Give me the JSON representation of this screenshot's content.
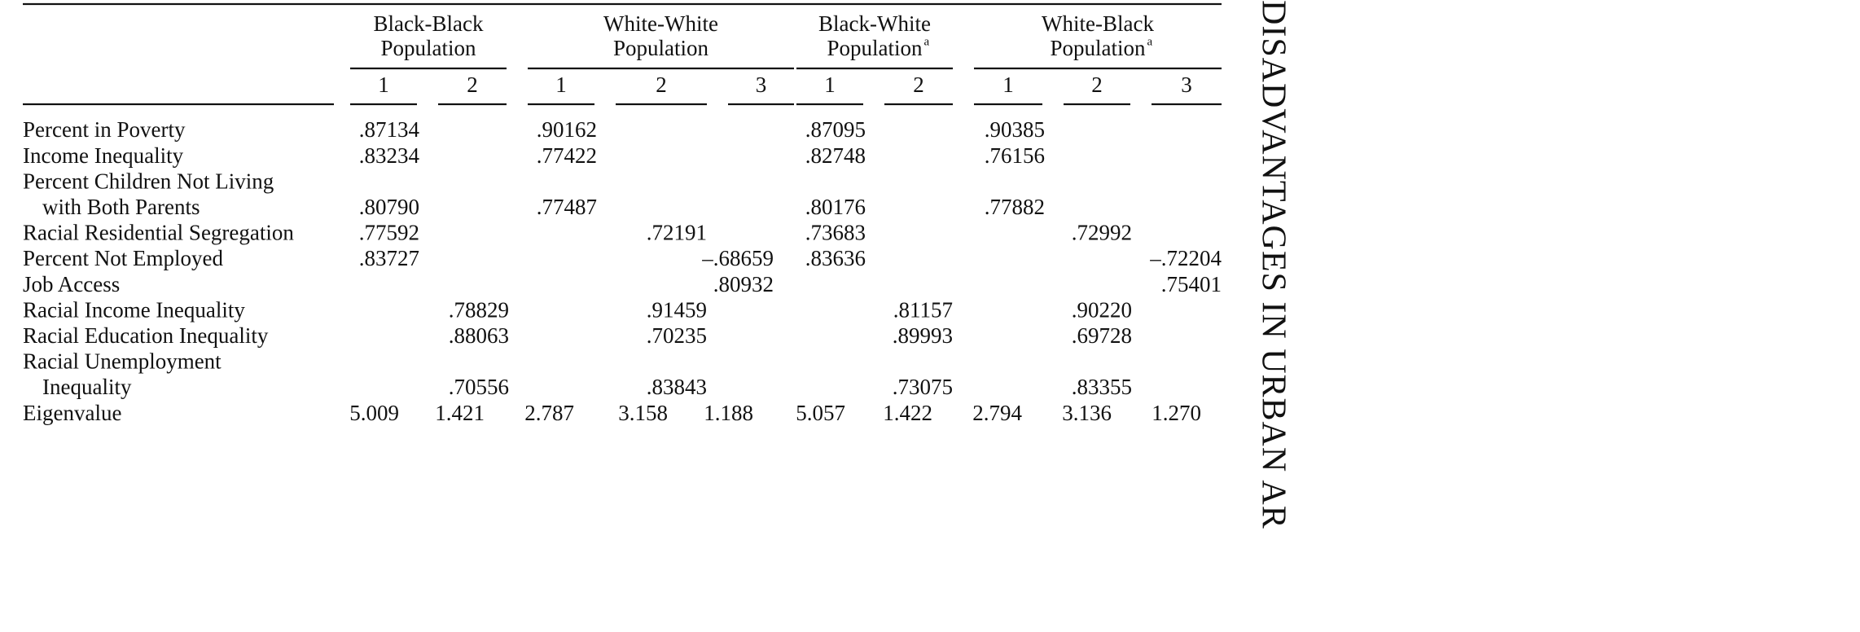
{
  "header": {
    "groups": [
      {
        "title": [
          "Black-Black",
          "Population"
        ],
        "columns": [
          "1",
          "2"
        ]
      },
      {
        "title": [
          "White-White",
          "Population"
        ],
        "columns": [
          "1",
          "2",
          "3"
        ]
      },
      {
        "title": [
          "Black-White",
          "Population"
        ],
        "note": "a",
        "columns": [
          "1",
          "2"
        ]
      },
      {
        "title": [
          "White-Black",
          "Population"
        ],
        "note": "a",
        "columns": [
          "1",
          "2",
          "3"
        ]
      }
    ]
  },
  "table": {
    "rows": [
      {
        "label": [
          "Percent in Poverty"
        ],
        "values": [
          ".87134",
          null,
          ".90162",
          null,
          null,
          ".87095",
          null,
          ".90385",
          null,
          null
        ]
      },
      {
        "label": [
          "Income Inequality"
        ],
        "values": [
          ".83234",
          null,
          ".77422",
          null,
          null,
          ".82748",
          null,
          ".76156",
          null,
          null
        ]
      },
      {
        "label": [
          "Percent Children Not Living",
          "with Both Parents"
        ],
        "values": [
          ".80790",
          null,
          ".77487",
          null,
          null,
          ".80176",
          null,
          ".77882",
          null,
          null
        ]
      },
      {
        "label": [
          "Racial Residential Segregation"
        ],
        "values": [
          ".77592",
          null,
          null,
          ".72191",
          null,
          ".73683",
          null,
          null,
          ".72992",
          null
        ]
      },
      {
        "label": [
          "Percent Not Employed"
        ],
        "values": [
          ".83727",
          null,
          null,
          null,
          "–.68659",
          ".83636",
          null,
          null,
          null,
          "–.72204"
        ]
      },
      {
        "label": [
          "Job Access"
        ],
        "values": [
          null,
          null,
          null,
          null,
          ".80932",
          null,
          null,
          null,
          null,
          ".75401"
        ]
      },
      {
        "label": [
          "Racial Income Inequality"
        ],
        "values": [
          null,
          ".78829",
          null,
          ".91459",
          null,
          null,
          ".81157",
          null,
          ".90220",
          null
        ]
      },
      {
        "label": [
          "Racial Education Inequality"
        ],
        "values": [
          null,
          ".88063",
          null,
          ".70235",
          null,
          null,
          ".89993",
          null,
          ".69728",
          null
        ]
      },
      {
        "label": [
          "Racial Unemployment",
          "Inequality"
        ],
        "values": [
          null,
          ".70556",
          null,
          ".83843",
          null,
          null,
          ".73075",
          null,
          ".83355",
          null
        ]
      },
      {
        "label": [
          "Eigenvalue"
        ],
        "values": [
          "5.009",
          "1.421",
          "2.787",
          "3.158",
          "1.188",
          "5.057",
          "1.422",
          "2.794",
          "3.136",
          "1.270"
        ]
      }
    ]
  },
  "side_text": "DISADVANTAGES IN URBAN AR"
}
